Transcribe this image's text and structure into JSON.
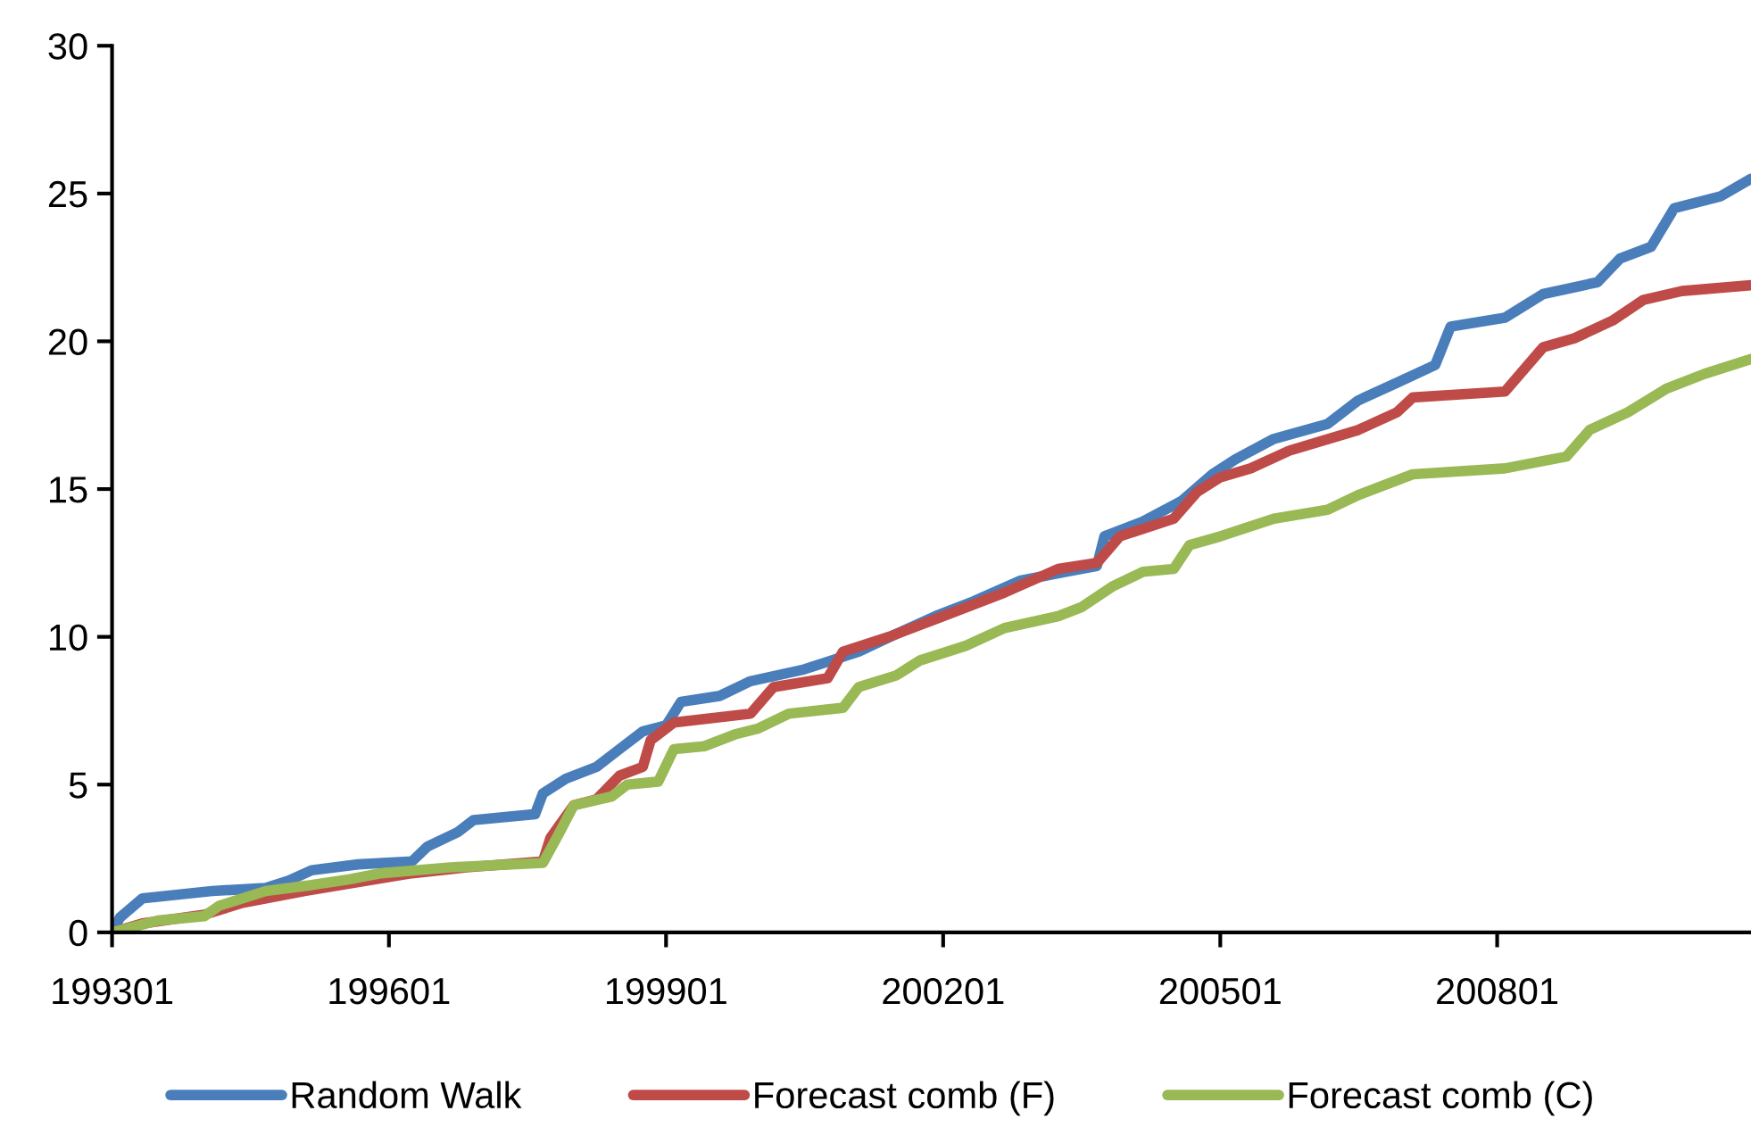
{
  "chart_data": {
    "type": "line",
    "xlim": [
      "1993-01",
      "2010-10"
    ],
    "xticks": [
      {
        "value": "1993-01",
        "label": "199301"
      },
      {
        "value": "1996-01",
        "label": "199601"
      },
      {
        "value": "1999-01",
        "label": "199901"
      },
      {
        "value": "2002-01",
        "label": "200201"
      },
      {
        "value": "2005-01",
        "label": "200501"
      },
      {
        "value": "2008-01",
        "label": "200801"
      }
    ],
    "ylim": [
      0,
      30
    ],
    "yticks": [
      0,
      5,
      10,
      15,
      20,
      25,
      30
    ],
    "grid": false,
    "legend": "bottom",
    "marker": "none",
    "line_style": "solid",
    "series": [
      {
        "name": "Random Walk",
        "color": "#4a7ebb",
        "x": [
          "1993-01",
          "1993-02",
          "1993-05",
          "1994-02",
          "1994-09",
          "1994-12",
          "1995-03",
          "1995-09",
          "1996-04",
          "1996-06",
          "1996-10",
          "1996-12",
          "1997-08",
          "1997-09",
          "1997-12",
          "1998-04",
          "1998-07",
          "1998-10",
          "1999-01",
          "1999-03",
          "1999-08",
          "1999-12",
          "2000-07",
          "2001-02",
          "2001-07",
          "2001-12",
          "2002-05",
          "2002-11",
          "2003-05",
          "2003-09",
          "2003-10",
          "2004-03",
          "2004-08",
          "2004-12",
          "2005-03",
          "2005-08",
          "2006-03",
          "2006-07",
          "2006-12",
          "2007-05",
          "2007-07",
          "2008-02",
          "2008-07",
          "2009-02",
          "2009-05",
          "2009-09",
          "2009-12",
          "2010-06",
          "2010-10"
        ],
        "values": [
          0,
          0.5,
          1.15,
          1.4,
          1.5,
          1.75,
          2.1,
          2.3,
          2.4,
          2.9,
          3.4,
          3.8,
          4.0,
          4.7,
          5.2,
          5.6,
          6.2,
          6.8,
          7.0,
          7.8,
          8.0,
          8.5,
          8.9,
          9.5,
          10.1,
          10.7,
          11.2,
          11.9,
          12.2,
          12.4,
          13.4,
          13.9,
          14.6,
          15.5,
          16.0,
          16.7,
          17.2,
          18.0,
          18.6,
          19.2,
          20.5,
          20.8,
          21.6,
          22.0,
          22.8,
          23.2,
          24.5,
          24.9,
          25.5
        ]
      },
      {
        "name": "Forecast comb (F)",
        "color": "#be4b48",
        "x": [
          "1993-01",
          "1993-05",
          "1994-01",
          "1994-06",
          "1995-02",
          "1995-09",
          "1996-04",
          "1996-11",
          "1997-09",
          "1997-10",
          "1998-01",
          "1998-04",
          "1998-07",
          "1998-10",
          "1998-11",
          "1999-02",
          "1999-12",
          "2000-03",
          "2000-10",
          "2000-12",
          "2001-06",
          "2002-01",
          "2002-09",
          "2003-04",
          "2003-09",
          "2003-12",
          "2004-07",
          "2004-10",
          "2005-01",
          "2005-05",
          "2005-10",
          "2006-07",
          "2006-12",
          "2007-02",
          "2008-02",
          "2008-07",
          "2008-11",
          "2009-04",
          "2009-08",
          "2010-01",
          "2010-10"
        ],
        "values": [
          0,
          0.3,
          0.6,
          1.0,
          1.4,
          1.7,
          2.0,
          2.2,
          2.4,
          3.2,
          4.3,
          4.5,
          5.3,
          5.6,
          6.5,
          7.1,
          7.4,
          8.3,
          8.6,
          9.5,
          10.0,
          10.7,
          11.5,
          12.3,
          12.5,
          13.4,
          14.0,
          14.9,
          15.4,
          15.7,
          16.3,
          17.0,
          17.6,
          18.1,
          18.3,
          19.8,
          20.1,
          20.7,
          21.4,
          21.7,
          21.9
        ]
      },
      {
        "name": "Forecast comb (C)",
        "color": "#98b954",
        "x": [
          "1993-01",
          "1993-07",
          "1994-01",
          "1994-03",
          "1994-09",
          "1995-03",
          "1995-08",
          "1995-12",
          "1996-09",
          "1997-09",
          "1997-11",
          "1998-01",
          "1998-06",
          "1998-08",
          "1998-12",
          "1999-02",
          "1999-06",
          "1999-10",
          "2000-01",
          "2000-05",
          "2000-12",
          "2001-02",
          "2001-07",
          "2001-10",
          "2002-04",
          "2002-09",
          "2003-04",
          "2003-07",
          "2003-11",
          "2004-03",
          "2004-07",
          "2004-09",
          "2005-01",
          "2005-08",
          "2006-03",
          "2006-07",
          "2007-02",
          "2008-02",
          "2008-10",
          "2009-01",
          "2009-06",
          "2009-11",
          "2010-04",
          "2010-10"
        ],
        "values": [
          0,
          0.4,
          0.55,
          0.9,
          1.4,
          1.6,
          1.8,
          2.0,
          2.2,
          2.35,
          3.3,
          4.3,
          4.6,
          5.0,
          5.1,
          6.2,
          6.3,
          6.7,
          6.9,
          7.4,
          7.6,
          8.3,
          8.7,
          9.2,
          9.7,
          10.3,
          10.7,
          11.0,
          11.7,
          12.2,
          12.3,
          13.1,
          13.4,
          14.0,
          14.3,
          14.8,
          15.5,
          15.7,
          16.1,
          17.0,
          17.6,
          18.4,
          18.9,
          19.4
        ]
      }
    ]
  }
}
